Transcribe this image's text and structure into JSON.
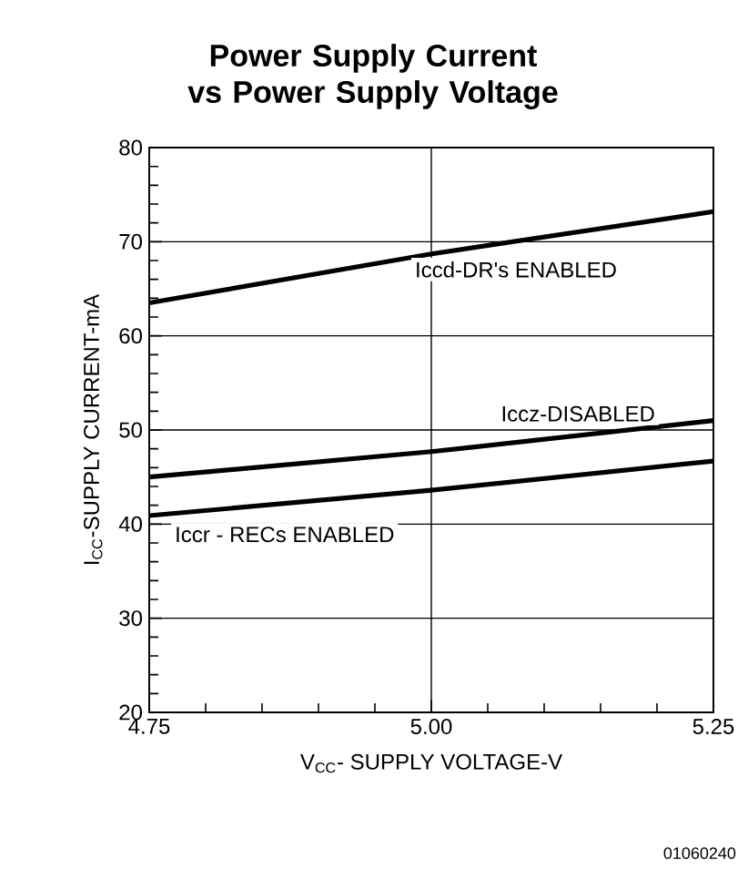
{
  "chart_data": {
    "type": "line",
    "title": "Power Supply Current vs Power Supply Voltage",
    "xlabel": "V$_{CC}$- SUPPLY VOLTAGE-V",
    "ylabel": "I$_{CC}$-SUPPLY CURRENT-mA",
    "x": [
      4.75,
      5.0,
      5.25
    ],
    "series": [
      {
        "name": "Iccd-DR's ENABLED",
        "color": "#000000",
        "values": [
          63.5,
          68.7,
          73.2
        ]
      },
      {
        "name": "Iccz-DISABLED",
        "color": "#000000",
        "values": [
          45.0,
          47.7,
          51.0
        ]
      },
      {
        "name": "Iccr - RECs ENABLED",
        "color": "#000000",
        "values": [
          40.9,
          43.6,
          46.7
        ]
      }
    ],
    "xlim": [
      4.75,
      5.25
    ],
    "ylim": [
      20,
      80
    ],
    "xticks": [
      {
        "value": 4.75,
        "label": "4.75"
      },
      {
        "value": 5.0,
        "label": "5.00"
      },
      {
        "value": 5.25,
        "label": "5.25"
      }
    ],
    "yticks": [
      20,
      30,
      40,
      50,
      60,
      70,
      80
    ],
    "grid": true,
    "marker": "none",
    "line_style": "solid",
    "annotations": [
      "01060240"
    ]
  }
}
